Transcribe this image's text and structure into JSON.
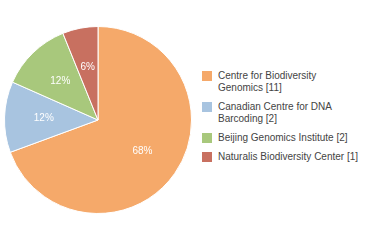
{
  "chart_data": {
    "type": "pie",
    "categories": [
      "Centre for Biodiversity\nGenomics [11]",
      "Canadian Centre for DNA\nBarcoding [2]",
      "Beijing Genomics Institute [2]",
      "Naturalis Biodiversity Center [1]"
    ],
    "values": [
      68,
      12,
      12,
      6
    ],
    "value_labels": [
      "68%",
      "12%",
      "12%",
      "6%"
    ],
    "colors": [
      "#F5A96A",
      "#A8C4E0",
      "#A8C87C",
      "#C87060"
    ],
    "data_labels": true,
    "legend": "right"
  }
}
